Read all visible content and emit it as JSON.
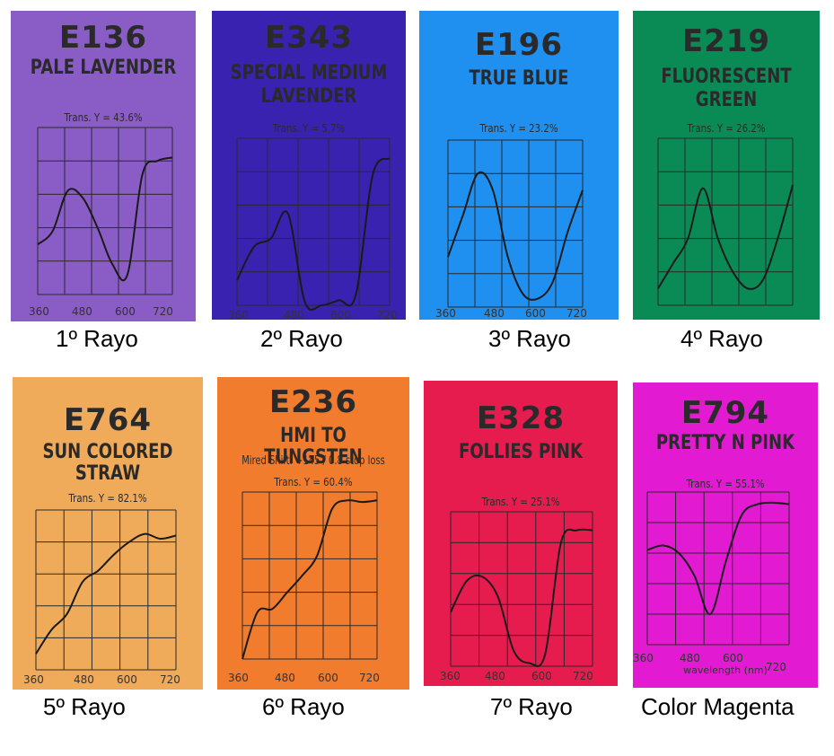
{
  "swatches": [
    {
      "code": "E136",
      "name": [
        "PALE LAVENDER"
      ],
      "subtitle": "",
      "transmission": "Trans. Y = 43.6%",
      "color": "#8a5cc6",
      "caption": "1º Rayo",
      "curve_y": [
        0.3,
        0.38,
        0.62,
        0.58,
        0.4,
        0.18,
        0.12,
        0.72,
        0.8,
        0.82
      ]
    },
    {
      "code": "E343",
      "name": [
        "SPECIAL MEDIUM",
        "LAVENDER"
      ],
      "subtitle": "",
      "transmission": "Trans. Y = 5.7%",
      "color": "#3a22b0",
      "caption": "2º Rayo",
      "curve_y": [
        0.15,
        0.35,
        0.4,
        0.55,
        0.02,
        0.0,
        0.03,
        0.06,
        0.78,
        0.88
      ]
    },
    {
      "code": "E196",
      "name": [
        "TRUE BLUE"
      ],
      "subtitle": "",
      "transmission": "Trans. Y = 23.2%",
      "color": "#1f8ff0",
      "caption": "3º Rayo",
      "curve_y": [
        0.3,
        0.55,
        0.8,
        0.7,
        0.3,
        0.08,
        0.05,
        0.15,
        0.45,
        0.7
      ]
    },
    {
      "code": "E219",
      "name": [
        "FLUORESCENT",
        "GREEN"
      ],
      "subtitle": "",
      "transmission": "Trans. Y = 26.2%",
      "color": "#0a8a55",
      "caption": "4º Rayo",
      "curve_y": [
        0.1,
        0.25,
        0.4,
        0.7,
        0.4,
        0.2,
        0.1,
        0.15,
        0.4,
        0.72
      ]
    },
    {
      "code": "E764",
      "name": [
        "SUN COLORED",
        "STRAW"
      ],
      "subtitle": "",
      "transmission": "Trans. Y = 82.1%",
      "color": "#efaa5a",
      "caption": "5º Rayo",
      "curve_y": [
        0.1,
        0.25,
        0.35,
        0.55,
        0.62,
        0.72,
        0.8,
        0.85,
        0.82,
        0.84
      ]
    },
    {
      "code": "E236",
      "name": [
        "HMI TO TUNGSTEN"
      ],
      "subtitle": "Mired Shift: +145 / 0.8 stop loss",
      "transmission": "Trans. Y = 60.4%",
      "color": "#f17c2e",
      "caption": "6º Rayo",
      "curve_y": [
        0.0,
        0.28,
        0.3,
        0.4,
        0.5,
        0.62,
        0.9,
        0.95,
        0.94,
        0.95
      ]
    },
    {
      "code": "E328",
      "name": [
        "FOLLIES PINK"
      ],
      "subtitle": "",
      "transmission": "Trans. Y = 25.1%",
      "color": "#e61b4e",
      "caption": "7º Rayo",
      "curve_y": [
        0.35,
        0.55,
        0.58,
        0.45,
        0.1,
        0.02,
        0.08,
        0.8,
        0.88,
        0.88
      ]
    },
    {
      "code": "E794",
      "name": [
        "PRETTY N PINK"
      ],
      "subtitle": "",
      "transmission": "Trans. Y = 55.1%",
      "color": "#e21ad2",
      "caption": "Color Magenta",
      "curve_y": [
        0.62,
        0.65,
        0.6,
        0.45,
        0.2,
        0.55,
        0.85,
        0.92,
        0.93,
        0.92
      ]
    }
  ],
  "x_ticks": [
    "360",
    "480",
    "600",
    "720"
  ],
  "wavelength_label": "wavelength (nm)"
}
